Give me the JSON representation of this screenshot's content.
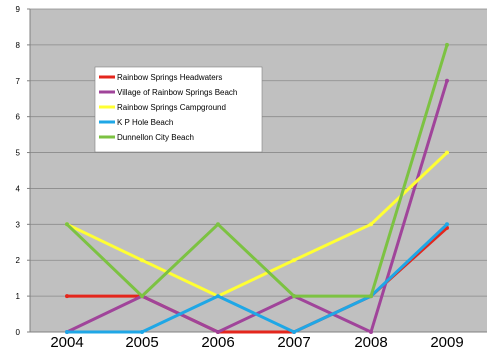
{
  "chart_data": {
    "type": "line",
    "title": "",
    "xlabel": "",
    "ylabel": "",
    "categories": [
      "2004",
      "2005",
      "2006",
      "2007",
      "2008",
      "2009"
    ],
    "ylim": [
      0,
      9
    ],
    "yticks": [
      "0",
      "1",
      "2",
      "3",
      "4",
      "5",
      "6",
      "7",
      "8",
      "9"
    ],
    "grid": true,
    "legend_position": "top-left",
    "plot_background": "#c0c0c0",
    "series": [
      {
        "name": "Rainbow Springs Headwaters",
        "color": "#e4261c",
        "values": [
          1,
          1,
          0,
          0,
          1,
          2.9
        ]
      },
      {
        "name": "Village of Rainbow Springs Beach",
        "color": "#a0449a",
        "values": [
          0,
          1,
          0,
          1,
          0,
          7
        ]
      },
      {
        "name": "Rainbow Springs Campground",
        "color": "#ffff33",
        "values": [
          3,
          2,
          1,
          2,
          3,
          5
        ]
      },
      {
        "name": "K P Hole Beach",
        "color": "#1fa7e6",
        "values": [
          0,
          0,
          1,
          0,
          1,
          3
        ]
      },
      {
        "name": "Dunnellon City Beach",
        "color": "#7cc242",
        "values": [
          3,
          1,
          3,
          1,
          1,
          8
        ]
      }
    ]
  }
}
